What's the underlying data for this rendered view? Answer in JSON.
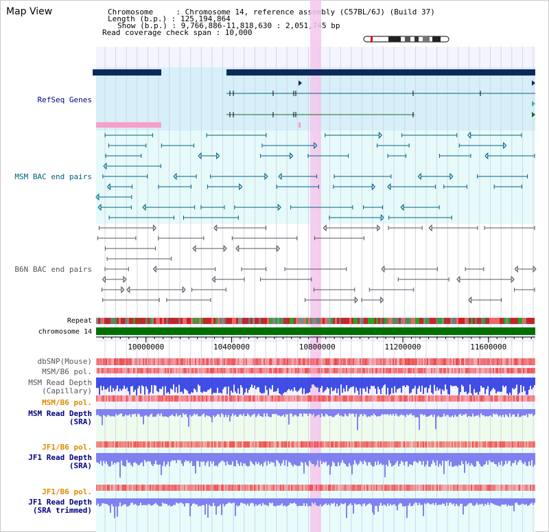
{
  "header": {
    "title": "Map View",
    "info_lines": [
      "Chromosome     : Chromosome 14, reference assembly (C57BL/6J) (Build 37)",
      "Length (b.p.) : 125,194,864",
      "Show (b.p.) : 9,766,886-11,818,630 : 2,051,745 bp",
      "Read coverage check span : 10,000"
    ]
  },
  "tracks": {
    "refseq": "RefSeq Genes",
    "msm_bac": "MSM BAC end pairs",
    "b6n_bac": "B6N BAC end pairs",
    "repeat": "Repeat",
    "chromosome": "chromosome 14"
  },
  "axis": {
    "ticks": [
      {
        "pos": 10000000,
        "label": "10000000"
      },
      {
        "pos": 10400000,
        "label": "10400000"
      },
      {
        "pos": 10800000,
        "label": "10800000"
      },
      {
        "pos": 11200000,
        "label": "11200000"
      },
      {
        "pos": 11600000,
        "label": "11600000"
      }
    ],
    "range": [
      9766886,
      11818630
    ]
  },
  "quant_tracks": [
    {
      "key": "dbsnp",
      "lines": [
        "dbSNP(Mouse)"
      ],
      "color": "#555555"
    },
    {
      "key": "msm_b6_pol_1",
      "lines": [
        "MSM/B6 pol."
      ],
      "color": "#555555"
    },
    {
      "key": "msm_depth_cap",
      "lines": [
        "MSM Read Depth",
        "(Capillary)"
      ],
      "color": "#555555"
    },
    {
      "key": "msm_b6_pol_2",
      "lines": [
        "MSM/B6 pol."
      ],
      "color": "#e08a00"
    },
    {
      "key": "msm_depth_sra",
      "lines": [
        "MSM Read Depth",
        "(SRA)"
      ],
      "color": "#000080"
    },
    {
      "key": "jf1_b6_pol_1",
      "lines": [
        "JF1/B6 pol."
      ],
      "color": "#e08a00"
    },
    {
      "key": "jf1_depth_sra",
      "lines": [
        "JF1 Read Depth",
        "(SRA)"
      ],
      "color": "#000080"
    },
    {
      "key": "jf1_b6_pol_2",
      "lines": [
        "JF1/B6 pol."
      ],
      "color": "#e08a00"
    },
    {
      "key": "jf1_depth_trim",
      "lines": [
        "JF1 Read Depth",
        "(SRA trimmed)"
      ],
      "color": "#000080"
    }
  ],
  "colors": {
    "refseq_label": "#000080",
    "msm_label": "#006080",
    "b6n_label": "#555555",
    "highlight": "#f5c6ec",
    "refseq_bg": "#d6eff9",
    "msm_bg": "#e6fafa",
    "chromosome_bar": "#007000",
    "capillary": "#2030e0",
    "sra": "#8080f0",
    "pol": "#f05050"
  }
}
